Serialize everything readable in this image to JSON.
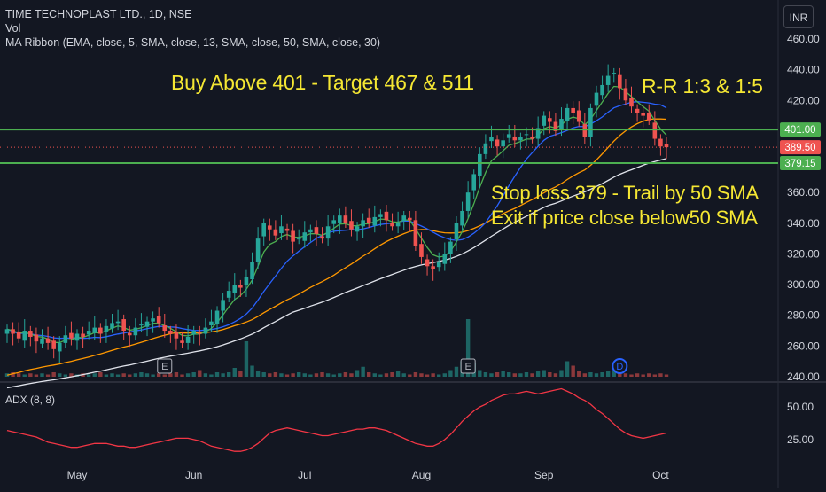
{
  "header": {
    "symbol_line": "TIME TECHNOPLAST LTD., 1D, NSE",
    "vol_label": "Vol",
    "ma_label": "MA Ribbon (EMA, close, 5, SMA, close, 13, SMA, close, 50, SMA, close, 30)",
    "currency": "INR"
  },
  "annotations": {
    "buy": "Buy Above 401 - Target 467 & 511",
    "rr": "R-R 1:3 & 1:5",
    "stop": "Stop loss 379 - Trail by 50 SMA",
    "exit": "Exit if price close below50 SMA"
  },
  "colors": {
    "background": "#131722",
    "up": "#26a69a",
    "down": "#ef5350",
    "level_line": "#4caf50",
    "annotation": "#f5e733",
    "ema5": "#4caf50",
    "sma13": "#2962ff",
    "sma30": "#ff9800",
    "sma50": "#e0e3eb",
    "adx": "#f23645"
  },
  "chart_data": [
    {
      "type": "candlestick",
      "y_axis": {
        "range": [
          240,
          460
        ],
        "ticks": [
          "240.00",
          "260.00",
          "280.00",
          "300.00",
          "320.00",
          "340.00",
          "360.00",
          "380.00",
          "400.00",
          "420.00",
          "440.00",
          "460.00"
        ],
        "tick_values": [
          240,
          260,
          280,
          300,
          320,
          340,
          360,
          380,
          400,
          420,
          440,
          460
        ]
      },
      "x_axis": {
        "ticks": [
          {
            "label": "May",
            "index": 12
          },
          {
            "label": "Jun",
            "index": 32
          },
          {
            "label": "Jul",
            "index": 51
          },
          {
            "label": "Aug",
            "index": 71
          },
          {
            "label": "Sep",
            "index": 92
          },
          {
            "label": "Oct",
            "index": 112
          }
        ]
      },
      "price_levels": [
        {
          "label": "401.00",
          "value": 401,
          "style": "line"
        },
        {
          "label": "389.50",
          "value": 389.5,
          "style": "last-price"
        },
        {
          "label": "379.15",
          "value": 379.15,
          "style": "line"
        }
      ],
      "closes": [
        271,
        268,
        265,
        270,
        266,
        263,
        265,
        262,
        258,
        262,
        267,
        265,
        268,
        266,
        270,
        272,
        268,
        273,
        275,
        276,
        270,
        267,
        272,
        274,
        276,
        278,
        275,
        270,
        268,
        265,
        262,
        266,
        270,
        268,
        272,
        276,
        283,
        290,
        296,
        300,
        298,
        305,
        315,
        330,
        340,
        336,
        332,
        338,
        335,
        328,
        330,
        334,
        336,
        333,
        330,
        338,
        342,
        345,
        340,
        336,
        338,
        342,
        340,
        344,
        346,
        342,
        338,
        340,
        345,
        342,
        325,
        318,
        312,
        310,
        315,
        320,
        328,
        340,
        348,
        360,
        372,
        385,
        392,
        396,
        390,
        394,
        398,
        394,
        396,
        398,
        395,
        402,
        410,
        406,
        400,
        408,
        415,
        412,
        406,
        396,
        415,
        425,
        430,
        436,
        438,
        428,
        420,
        416,
        412,
        410,
        407,
        395,
        390,
        389.5
      ],
      "highs_lows_note": "wicks approximated around each close",
      "event_markers": [
        {
          "label": "E",
          "index": 27
        },
        {
          "label": "E",
          "index": 79
        },
        {
          "label": "D",
          "index": 105
        }
      ],
      "volume": [
        3,
        4,
        3,
        2,
        3,
        2,
        3,
        2,
        4,
        3,
        2,
        3,
        2,
        3,
        2,
        3,
        4,
        2,
        3,
        2,
        3,
        2,
        3,
        4,
        3,
        2,
        3,
        2,
        3,
        4,
        2,
        3,
        4,
        6,
        3,
        2,
        4,
        3,
        4,
        8,
        5,
        32,
        10,
        5,
        4,
        3,
        4,
        3,
        2,
        3,
        4,
        3,
        2,
        3,
        4,
        3,
        2,
        3,
        4,
        3,
        6,
        9,
        4,
        3,
        2,
        3,
        4,
        5,
        3,
        2,
        4,
        3,
        2,
        3,
        2,
        3,
        6,
        9,
        14,
        52,
        12,
        6,
        4,
        3,
        4,
        5,
        4,
        3,
        3,
        4,
        3,
        5,
        6,
        4,
        3,
        6,
        14,
        10,
        5,
        3,
        4,
        3,
        4,
        5,
        6,
        4,
        3,
        2,
        3,
        2,
        3,
        2,
        3,
        2
      ],
      "series": [
        {
          "name": "EMA 5"
        },
        {
          "name": "SMA 13"
        },
        {
          "name": "SMA 30"
        },
        {
          "name": "SMA 50"
        }
      ]
    },
    {
      "type": "line",
      "title": "ADX (8, 8)",
      "y_axis": {
        "ticks": [
          "25.00",
          "50.00"
        ],
        "tick_values": [
          25,
          50
        ],
        "range": [
          10,
          65
        ]
      },
      "values": [
        32,
        31,
        30,
        29,
        28,
        27,
        25,
        23,
        22,
        21,
        20,
        19,
        19,
        20,
        21,
        22,
        22,
        22,
        21,
        20,
        20,
        19,
        19,
        20,
        21,
        22,
        23,
        24,
        25,
        26,
        26,
        26,
        25,
        24,
        22,
        20,
        19,
        18,
        17,
        16,
        16,
        17,
        19,
        22,
        26,
        30,
        32,
        33,
        34,
        33,
        32,
        31,
        30,
        29,
        28,
        28,
        29,
        30,
        31,
        32,
        33,
        33,
        34,
        34,
        33,
        32,
        30,
        28,
        26,
        24,
        22,
        21,
        20,
        20,
        22,
        25,
        29,
        34,
        39,
        43,
        47,
        50,
        52,
        55,
        57,
        59,
        60,
        60,
        61,
        62,
        61,
        60,
        61,
        62,
        63,
        64,
        62,
        60,
        57,
        55,
        52,
        48,
        45,
        41,
        37,
        33,
        30,
        28,
        27,
        26,
        27,
        28,
        29,
        30
      ]
    }
  ]
}
